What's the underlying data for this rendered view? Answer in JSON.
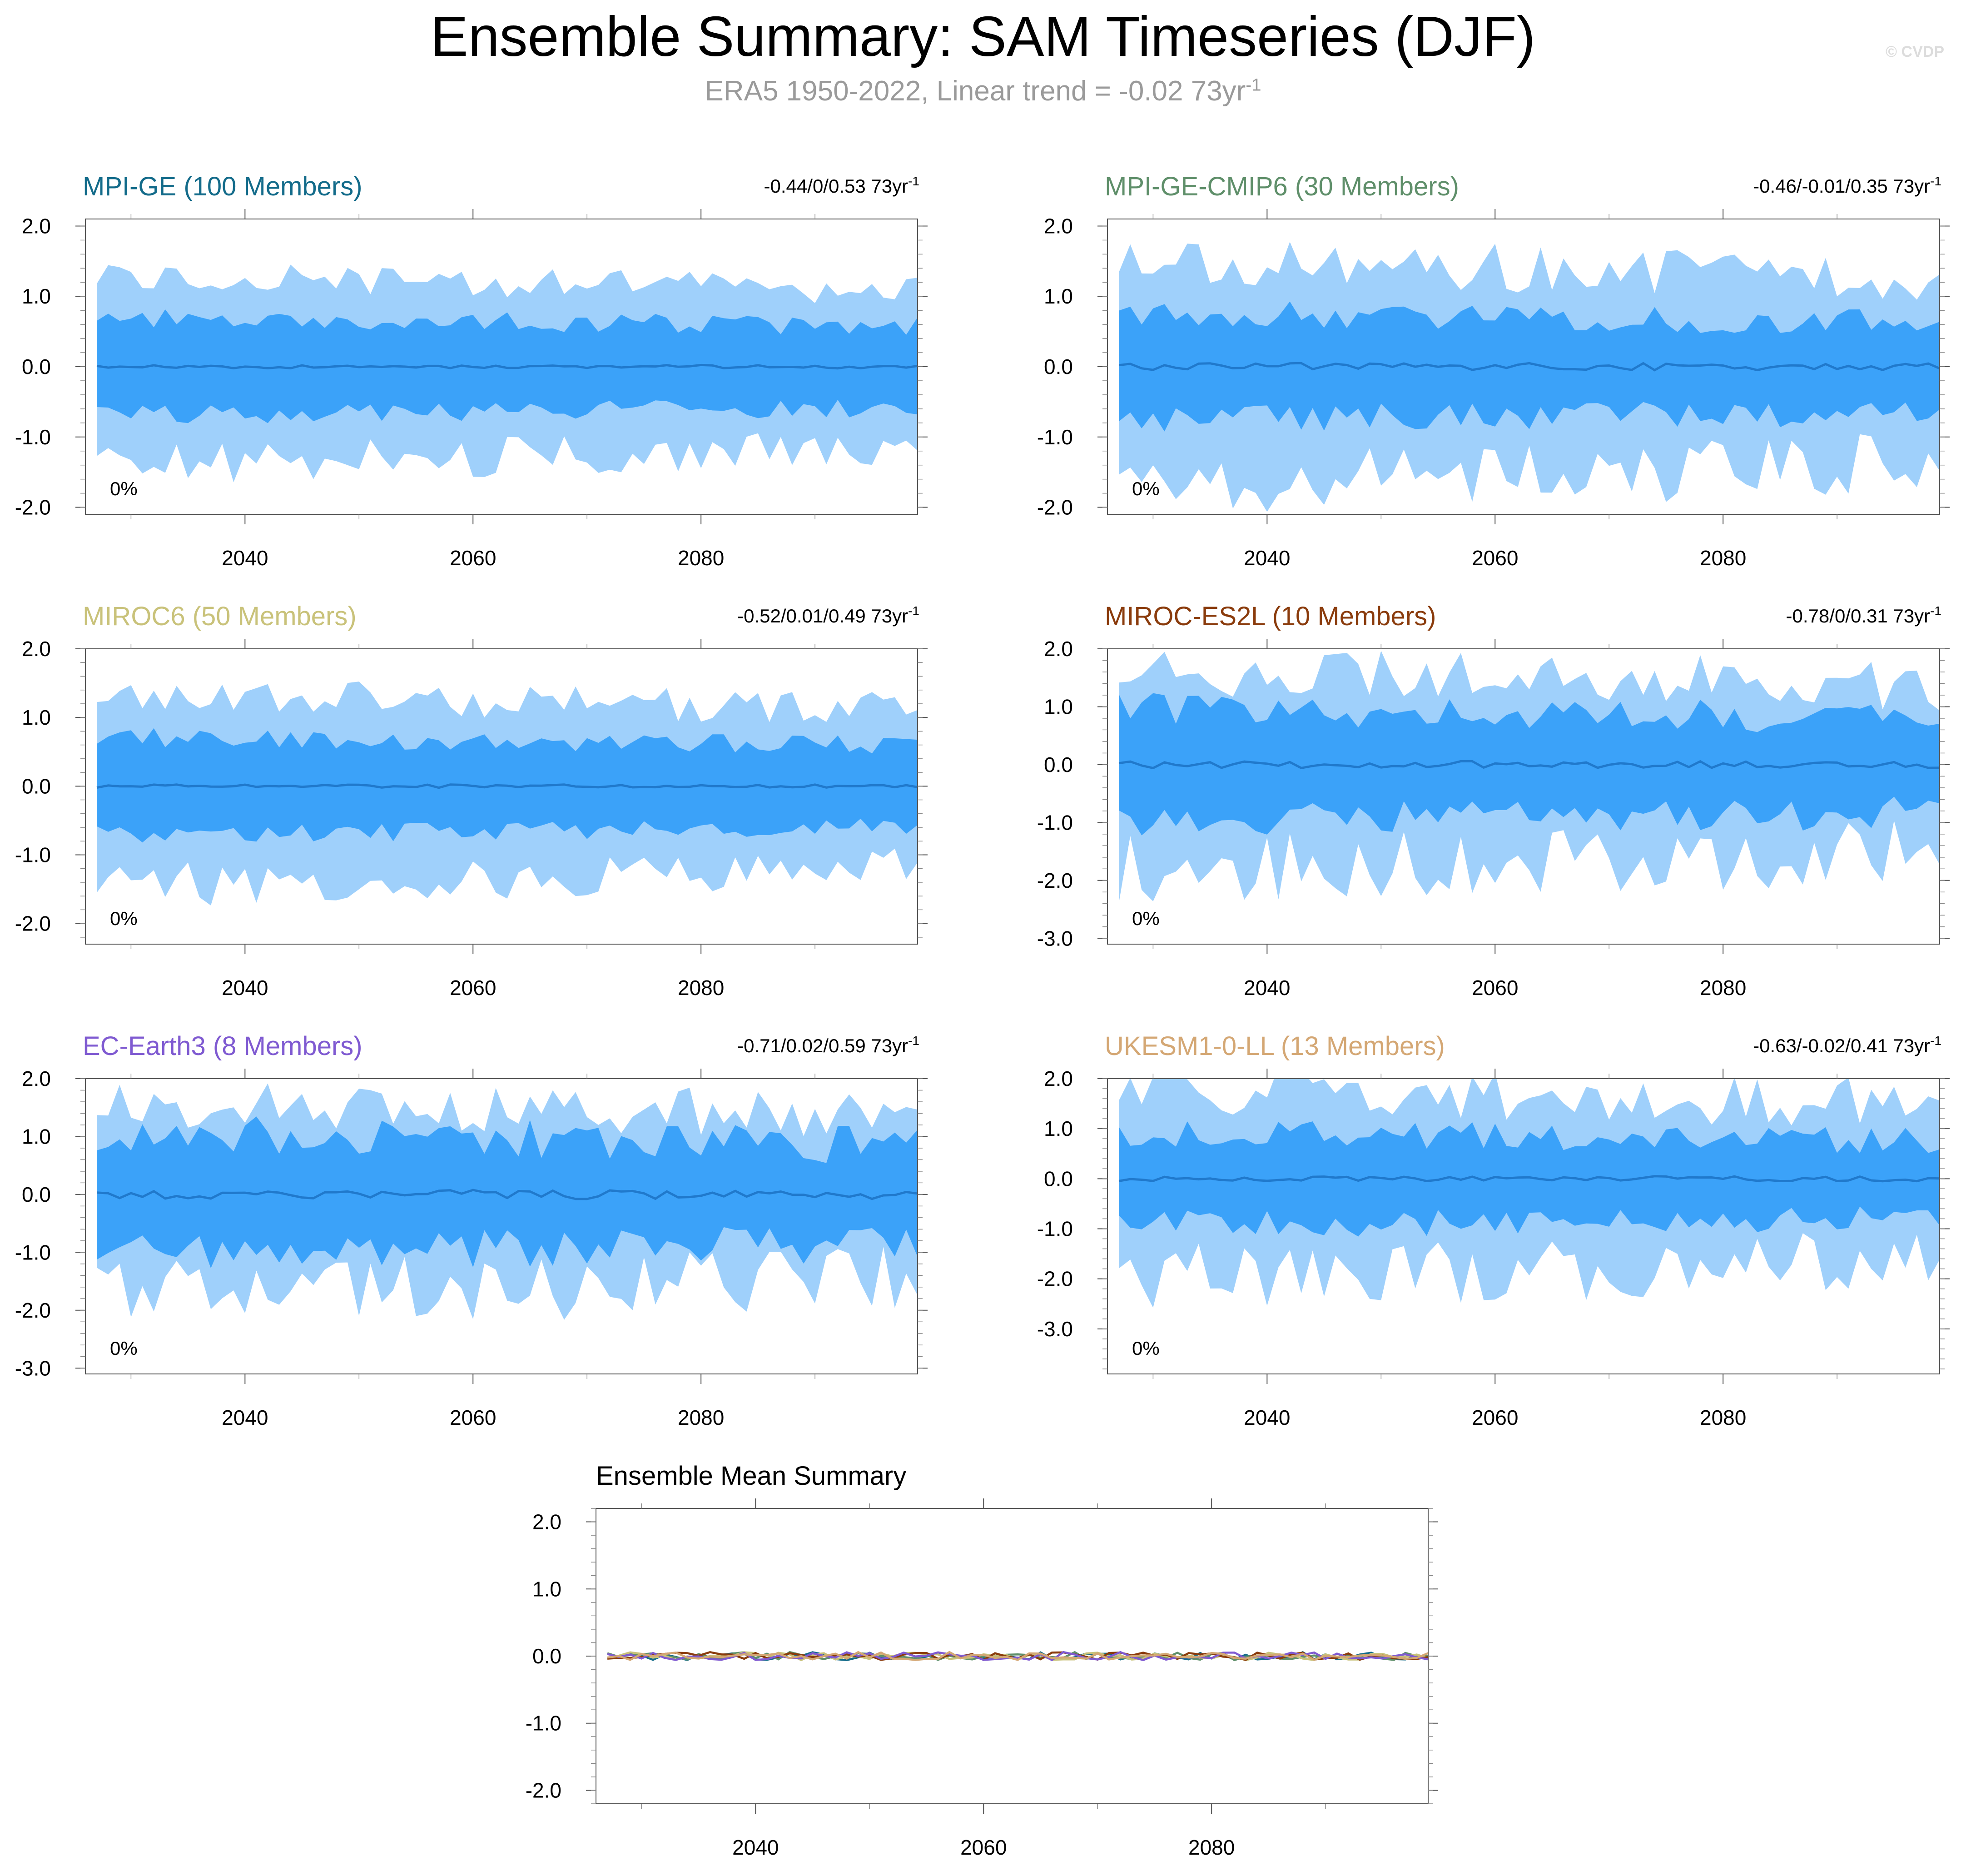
{
  "title": "Ensemble Summary: SAM Timeseries (DJF)",
  "subtitle": {
    "text": "ERA5 1950-2022, Linear trend = -0.02 73yr",
    "sup": "-1"
  },
  "watermark": "© CVDP",
  "colors": {
    "band_outer": "#9fd0fb",
    "band_inner": "#3ba2f9",
    "mean_line": "#2079cc",
    "axis": "#333333"
  },
  "chart_data": [
    {
      "type": "area",
      "name": "MPI-GE (100 Members)",
      "title_color": "#136b8a",
      "trend_text": "-0.44/0/0.53 73yr",
      "trend_sup": "-1",
      "percent_label": "0%",
      "xlim": [
        2026,
        2099
      ],
      "ylim": [
        -2.1,
        2.1
      ],
      "yticks": [
        2.0,
        1.0,
        0.0,
        -1.0,
        -2.0
      ],
      "xticks": [
        2040,
        2060,
        2080
      ],
      "seed": 11,
      "outer_amp": 1.25,
      "outer_var": 0.22,
      "inner_amp": 0.68,
      "inner_var": 0.14,
      "mean_var": 0.012
    },
    {
      "type": "area",
      "name": "MPI-GE-CMIP6 (30 Members)",
      "title_color": "#5f8f6a",
      "trend_text": "-0.46/-0.01/0.35 73yr",
      "trend_sup": "-1",
      "percent_label": "0%",
      "xlim": [
        2026,
        2099
      ],
      "ylim": [
        -2.1,
        2.1
      ],
      "yticks": [
        2.0,
        1.0,
        0.0,
        -1.0,
        -2.0
      ],
      "xticks": [
        2040,
        2060,
        2080
      ],
      "seed": 23,
      "outer_amp": 1.45,
      "outer_var": 0.35,
      "inner_amp": 0.75,
      "inner_var": 0.2,
      "mean_var": 0.025
    },
    {
      "type": "area",
      "name": "MIROC6 (50 Members)",
      "title_color": "#c9c27a",
      "trend_text": "-0.52/0.01/0.49 73yr",
      "trend_sup": "-1",
      "percent_label": "0%",
      "xlim": [
        2026,
        2099
      ],
      "ylim": [
        -2.3,
        2.0
      ],
      "yticks": [
        2.0,
        1.0,
        0.0,
        -1.0,
        -2.0
      ],
      "xticks": [
        2040,
        2060,
        2080
      ],
      "seed": 37,
      "outer_amp": 1.3,
      "outer_var": 0.25,
      "inner_amp": 0.7,
      "inner_var": 0.14,
      "mean_var": 0.012
    },
    {
      "type": "area",
      "name": "MIROC-ES2L (10 Members)",
      "title_color": "#8a3b0c",
      "trend_text": "-0.78/0/0.31 73yr",
      "trend_sup": "-1",
      "percent_label": "0%",
      "xlim": [
        2026,
        2099
      ],
      "ylim": [
        -3.1,
        2.0
      ],
      "yticks": [
        2.0,
        1.0,
        0.0,
        -1.0,
        -2.0,
        -3.0
      ],
      "xticks": [
        2040,
        2060,
        2080
      ],
      "seed": 41,
      "outer_amp": 1.55,
      "outer_var": 0.45,
      "inner_amp": 0.95,
      "inner_var": 0.3,
      "mean_var": 0.03
    },
    {
      "type": "area",
      "name": "EC-Earth3 (8 Members)",
      "title_color": "#7f5ad1",
      "trend_text": "-0.71/0.02/0.59 73yr",
      "trend_sup": "-1",
      "percent_label": "0%",
      "xlim": [
        2026,
        2099
      ],
      "ylim": [
        -3.1,
        2.0
      ],
      "yticks": [
        2.0,
        1.0,
        0.0,
        -1.0,
        -2.0,
        -3.0
      ],
      "xticks": [
        2040,
        2060,
        2080
      ],
      "seed": 53,
      "outer_amp": 1.5,
      "outer_var": 0.45,
      "inner_amp": 1.0,
      "inner_var": 0.35,
      "mean_var": 0.04
    },
    {
      "type": "area",
      "name": "UKESM1-0-LL (13 Members)",
      "title_color": "#d4a774",
      "trend_text": "-0.63/-0.02/0.41 73yr",
      "trend_sup": "-1",
      "percent_label": "0%",
      "xlim": [
        2026,
        2099
      ],
      "ylim": [
        -3.9,
        2.0
      ],
      "yticks": [
        2.0,
        1.0,
        0.0,
        -1.0,
        -2.0,
        -3.0
      ],
      "xticks": [
        2040,
        2060,
        2080
      ],
      "seed": 67,
      "outer_amp": 1.7,
      "outer_var": 0.5,
      "inner_amp": 0.9,
      "inner_var": 0.28,
      "mean_var": 0.025
    },
    {
      "type": "line",
      "name": "Ensemble Mean Summary",
      "title_color": "#000000",
      "xlim": [
        2026,
        2099
      ],
      "ylim": [
        -2.2,
        2.2
      ],
      "yticks": [
        2.0,
        1.0,
        0.0,
        -1.0,
        -2.0
      ],
      "xticks": [
        2040,
        2060,
        2080
      ],
      "series_colors": [
        "#136b8a",
        "#5f8f6a",
        "#c9c27a",
        "#8a3b0c",
        "#7f5ad1",
        "#d4a774"
      ],
      "seed": 79
    }
  ]
}
